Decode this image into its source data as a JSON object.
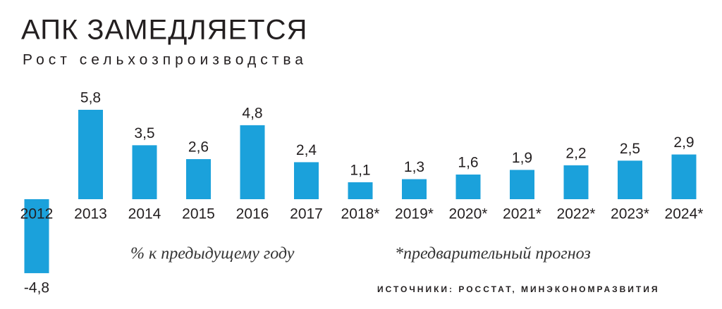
{
  "chart_data": {
    "type": "bar",
    "title": "АПК ЗАМЕДЛЯЕТСЯ",
    "subtitle": "Рост сельхозпроизводства",
    "categories": [
      "2012",
      "2013",
      "2014",
      "2015",
      "2016",
      "2017",
      "2018*",
      "2019*",
      "2020*",
      "2021*",
      "2022*",
      "2023*",
      "2024*"
    ],
    "values": [
      -4.8,
      5.8,
      3.5,
      2.6,
      4.8,
      2.4,
      1.1,
      1.3,
      1.6,
      1.9,
      2.2,
      2.5,
      2.9
    ],
    "value_labels": [
      "-4,8",
      "5,8",
      "3,5",
      "2,6",
      "4,8",
      "2,4",
      "1,1",
      "1,3",
      "1,6",
      "1,9",
      "2,2",
      "2,5",
      "2,9"
    ],
    "color": "#1ba1db",
    "ylim": [
      -5,
      6
    ],
    "unit_note": "% к предыдущему году",
    "forecast_note": "*предварительный прогноз",
    "source": "ИСТОЧНИКИ: РОССТАТ, МИНЭКОНОМРАЗВИТИЯ"
  }
}
